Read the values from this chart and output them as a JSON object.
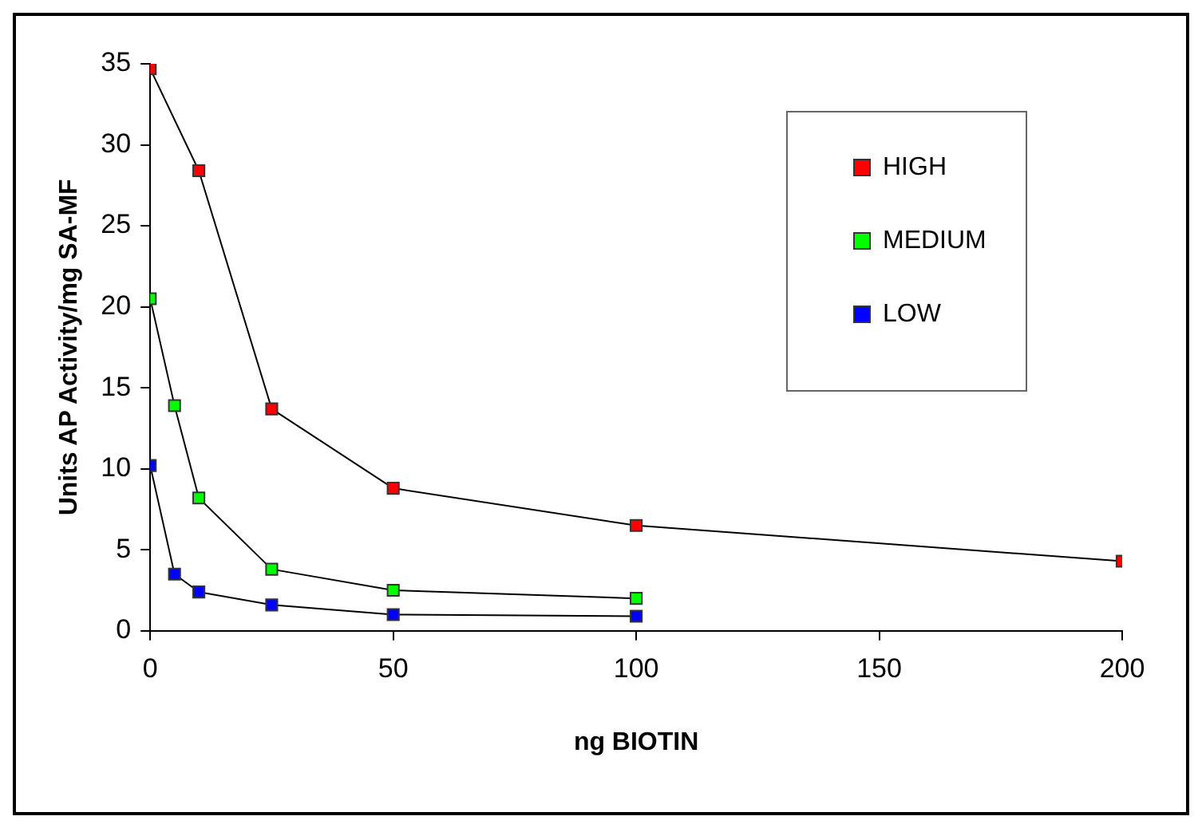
{
  "chart_data": {
    "type": "line",
    "xlabel": "ng BIOTIN",
    "ylabel": "Units AP Activity/mg SA-MF",
    "xlim": [
      0,
      200
    ],
    "xticks": [
      0,
      50,
      100,
      150,
      200
    ],
    "ylim": [
      0,
      35
    ],
    "yticks": [
      0,
      5,
      10,
      15,
      20,
      25,
      30,
      35
    ],
    "grid": false,
    "legend": "top right",
    "marker": "square",
    "line_style": "solid",
    "series": [
      {
        "name": "HIGH",
        "color": "#ff0000",
        "x": [
          0,
          10,
          25,
          50,
          100,
          200
        ],
        "values": [
          34.7,
          28.4,
          13.7,
          8.8,
          6.5,
          4.3
        ]
      },
      {
        "name": "MEDIUM",
        "color": "#00ff00",
        "x": [
          0,
          5,
          10,
          25,
          50,
          100
        ],
        "values": [
          20.5,
          13.9,
          8.2,
          3.8,
          2.5,
          2.0
        ]
      },
      {
        "name": "LOW",
        "color": "#0000ff",
        "x": [
          0,
          5,
          10,
          25,
          50,
          100
        ],
        "values": [
          10.2,
          3.5,
          2.4,
          1.6,
          1.0,
          0.9
        ]
      }
    ]
  }
}
